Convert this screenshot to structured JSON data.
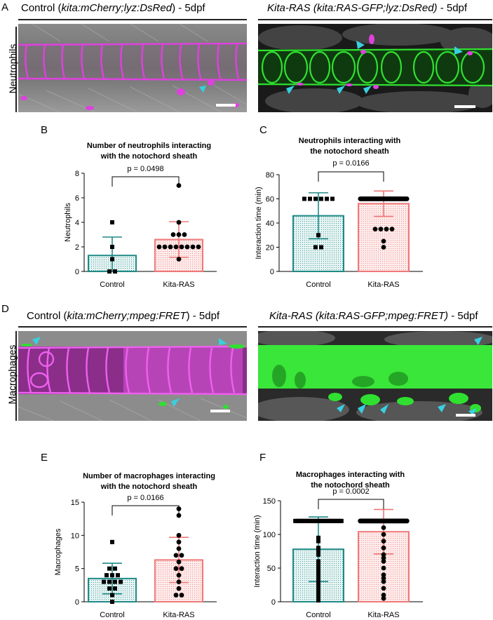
{
  "panels": {
    "a": {
      "letter": "A",
      "row_label": "Neutrophils",
      "left_title": {
        "pre": "Control (",
        "ital": "kita:mCherry;lyz:DsRed",
        "post": ") - 5dpf"
      },
      "right_title": {
        "pre": "",
        "ital": "Kita-RAS (kita:RAS-GFP;lyz:DsRed)",
        "post": " - 5dpf"
      }
    },
    "d": {
      "letter": "D",
      "row_label": "Macrophages",
      "left_title": {
        "pre": "Control (",
        "ital": "kita:mCherry;mpeg:FRET",
        "post": ") - 5dpf"
      },
      "right_title": {
        "pre": "",
        "ital": "Kita-RAS (kita:RAS-GFP;mpeg:FRET)",
        "post": " - 5dpf"
      }
    },
    "b": {
      "letter": "B"
    },
    "c": {
      "letter": "C"
    },
    "e": {
      "letter": "E"
    },
    "f": {
      "letter": "F"
    }
  },
  "colors": {
    "control": "#1f8a87",
    "kitaras": "#f07878",
    "control_fill": "#e6f4f3",
    "kitaras_fill": "#fdeceb",
    "arrowhead": "#38d0e0",
    "mcherry": "#e040e0",
    "gfp": "#30e030"
  },
  "chart_data": [
    {
      "id": "B",
      "type": "bar",
      "title": [
        "Number of neutrophils interacting",
        "with the notochord sheath"
      ],
      "ylabel": "Neutrophils",
      "ylim": [
        0,
        8
      ],
      "yticks": [
        0,
        2,
        4,
        6,
        8
      ],
      "categories": [
        "Control",
        "Kita-RAS"
      ],
      "values": [
        1.3,
        2.6
      ],
      "sd": [
        1.5,
        1.45
      ],
      "points": [
        [
          0,
          0,
          1,
          2,
          4
        ],
        [
          1,
          2,
          2,
          2,
          2,
          2,
          2,
          2,
          2,
          3,
          3,
          3,
          4,
          7
        ]
      ],
      "pvalue": "p = 0.0498"
    },
    {
      "id": "C",
      "type": "bar",
      "title": [
        "Neutrophils interacting with",
        "the notochord sheath"
      ],
      "ylabel": "Interaction time (min)",
      "ylim": [
        0,
        80
      ],
      "yticks": [
        0,
        20,
        40,
        60,
        80
      ],
      "categories": [
        "Control",
        "Kita-RAS"
      ],
      "values": [
        46,
        56
      ],
      "sd": [
        19,
        10.5
      ],
      "points": [
        [
          60,
          60,
          60,
          60,
          60,
          60,
          30,
          20,
          20
        ],
        [
          60,
          60,
          60,
          60,
          60,
          60,
          60,
          60,
          60,
          60,
          60,
          60,
          60,
          60,
          60,
          60,
          60,
          60,
          60,
          60,
          60,
          60,
          60,
          60,
          60,
          60,
          60,
          60,
          60,
          60,
          60,
          60,
          60,
          60,
          60,
          60,
          60,
          60,
          60,
          60,
          35,
          35,
          35,
          35,
          25,
          20
        ]
      ],
      "pvalue": "p = 0.0166"
    },
    {
      "id": "E",
      "type": "bar",
      "title": [
        "Number of macrophages interacting",
        "with the notochord sheath"
      ],
      "ylabel": "Macrophages",
      "ylim": [
        0,
        15
      ],
      "yticks": [
        0,
        5,
        10,
        15
      ],
      "categories": [
        "Control",
        "Kita-RAS"
      ],
      "values": [
        3.5,
        6.3
      ],
      "sd": [
        2.3,
        3.4
      ],
      "points": [
        [
          9,
          5,
          5,
          4,
          4,
          4,
          3,
          3,
          3,
          3,
          2,
          2,
          1,
          0
        ],
        [
          14,
          13,
          10,
          9,
          8,
          7,
          7,
          6,
          5,
          5,
          4,
          3,
          2,
          1,
          1
        ]
      ],
      "pvalue": "p = 0.0166"
    },
    {
      "id": "F",
      "type": "bar",
      "title": [
        "Macrophages interacting with",
        "the notochord sheath"
      ],
      "ylabel": "Interaction time (min)",
      "ylim": [
        0,
        150
      ],
      "yticks": [
        0,
        50,
        100,
        150
      ],
      "categories": [
        "Control",
        "Kita-RAS"
      ],
      "values": [
        78,
        104
      ],
      "sd": [
        48,
        33
      ],
      "points": [
        [
          120,
          120,
          120,
          120,
          120,
          120,
          120,
          120,
          120,
          120,
          120,
          120,
          120,
          120,
          120,
          120,
          120,
          120,
          120,
          120,
          120,
          120,
          120,
          120,
          120,
          120,
          120,
          120,
          120,
          120,
          95,
          90,
          80,
          75,
          70,
          60,
          55,
          50,
          45,
          40,
          35,
          30,
          25,
          20,
          15,
          10,
          8,
          5,
          3,
          2
        ],
        [
          120,
          120,
          120,
          120,
          120,
          120,
          120,
          120,
          120,
          120,
          120,
          120,
          120,
          120,
          120,
          120,
          120,
          120,
          120,
          120,
          120,
          120,
          120,
          120,
          120,
          120,
          120,
          120,
          120,
          120,
          120,
          120,
          120,
          120,
          120,
          120,
          120,
          120,
          120,
          120,
          120,
          120,
          120,
          120,
          120,
          120,
          120,
          120,
          120,
          120,
          110,
          100,
          90,
          80,
          70,
          65,
          60,
          50,
          40,
          35,
          30,
          20,
          10,
          5
        ]
      ],
      "pvalue": "p = 0.0002"
    }
  ]
}
